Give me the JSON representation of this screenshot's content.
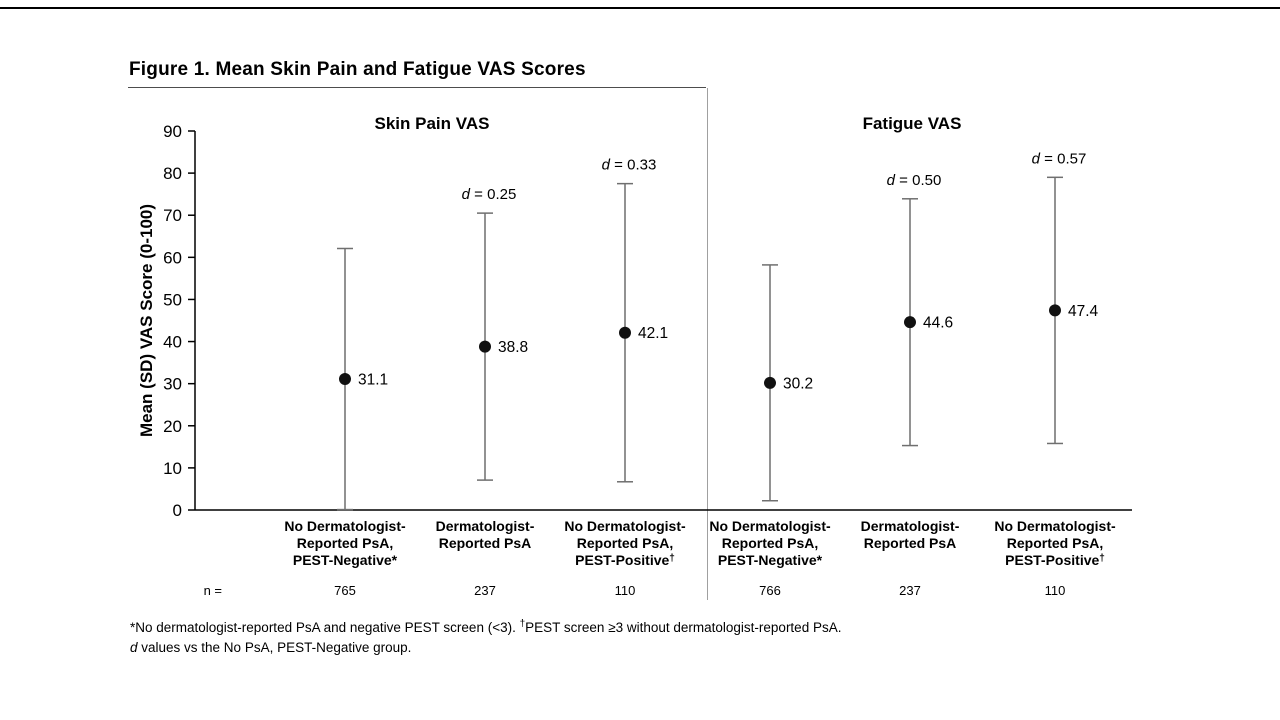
{
  "figure": {
    "title": "Figure 1. Mean Skin Pain and Fatigue VAS Scores",
    "footnote1_part1": "*No dermatologist-reported PsA and negative PEST screen (<3). ",
    "footnote1_sup": "†",
    "footnote1_part2": "PEST screen ≥3 without dermatologist-reported PsA.",
    "footnote2_d": "d",
    "footnote2_rest": " values vs the No PsA, PEST-Negative group."
  },
  "chart_data": {
    "type": "scatter",
    "subtype": "mean-with-sd-error-bars",
    "ylabel": "Mean (SD) VAS Score (0-100)",
    "ylim": [
      0,
      90
    ],
    "ytick_step": 10,
    "n_row_label": "n =",
    "point_color": "#111111",
    "errorbar_color": "#6f6f6f",
    "panels": [
      {
        "title": "Skin Pain VAS",
        "groups": [
          {
            "label_lines": [
              "No Dermatologist-",
              "Reported PsA,",
              "PEST-Negative*"
            ],
            "mean": 31.1,
            "sd": 31.0,
            "d": null,
            "n": "765"
          },
          {
            "label_lines": [
              "Dermatologist-",
              "Reported PsA"
            ],
            "mean": 38.8,
            "sd": 31.7,
            "d": "0.25",
            "n": "237"
          },
          {
            "label_lines": [
              "No Dermatologist-",
              "Reported PsA,",
              "PEST-Positive†"
            ],
            "mean": 42.1,
            "sd": 35.4,
            "d": "0.33",
            "n": "110"
          }
        ]
      },
      {
        "title": "Fatigue VAS",
        "groups": [
          {
            "label_lines": [
              "No Dermatologist-",
              "Reported PsA,",
              "PEST-Negative*"
            ],
            "mean": 30.2,
            "sd": 28.0,
            "d": null,
            "n": "766"
          },
          {
            "label_lines": [
              "Dermatologist-",
              "Reported PsA"
            ],
            "mean": 44.6,
            "sd": 29.3,
            "d": "0.50",
            "n": "237"
          },
          {
            "label_lines": [
              "No Dermatologist-",
              "Reported PsA,",
              "PEST-Positive†"
            ],
            "mean": 47.4,
            "sd": 31.6,
            "d": "0.57",
            "n": "110"
          }
        ]
      }
    ]
  }
}
